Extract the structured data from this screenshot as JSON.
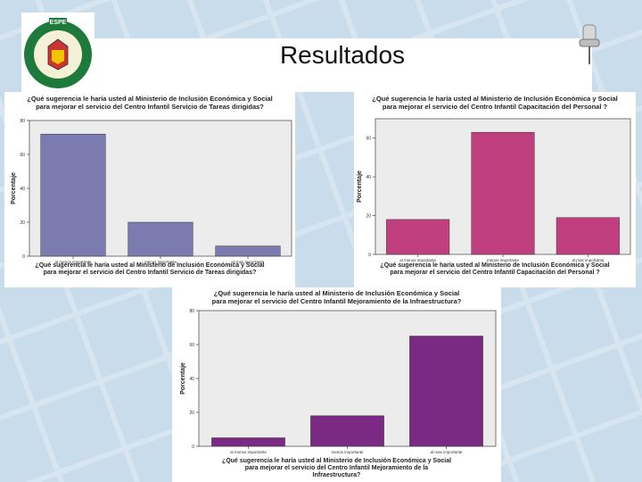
{
  "slide": {
    "title": "Resultados",
    "logo_text": "ESPE",
    "logo_ring_text": "UNIVERSIDAD DE LAS FUERZAS ARMADAS"
  },
  "chart_data": [
    {
      "type": "bar",
      "title": "¿Qué sugerencia le haría usted al Ministerio de Inclusión Económica y Social para mejorar el servicio del Centro Infantil Servicio de Tareas dirigidas?",
      "title_lines": [
        "¿Qué sugerencia le haría usted al Ministerio de Inclusión Económica y Social",
        "para mejorar el servicio del Centro Infantil Servicio de Tareas dirigidas?"
      ],
      "xlabel_lines": [
        "¿Qué sugerencia le haría usted al Ministerio de Inclusión Económica y Social",
        "para mejorar el servicio del Centro Infantil Servicio de Tareas dirigidas?"
      ],
      "ylabel": "Porcentaje",
      "categories": [
        "al menos importante",
        "menos importante",
        "al mas importante"
      ],
      "values": [
        72,
        20,
        6
      ],
      "yticks": [
        0,
        20,
        40,
        60,
        80
      ],
      "ylim": [
        0,
        80
      ],
      "color": "#7b7bb0"
    },
    {
      "type": "bar",
      "title": "¿Qué sugerencia le haría usted al Ministerio de Inclusión Económica y Social para mejorar el servicio del Centro Infantil Capacitación del Personal ?",
      "title_lines": [
        "¿Qué sugerencia le haría usted al Ministerio de Inclusión Económica y Social",
        "para mejorar el servicio del Centro Infantil Capacitación del Personal ?"
      ],
      "xlabel_lines": [
        "¿Qué sugerencia le haría usted al Ministerio de Inclusión Económica y Social",
        "para mejorar el servicio del Centro Infantil Capacitación del Personal ?"
      ],
      "ylabel": "Porcentaje",
      "categories": [
        "al menos importante",
        "menos importante",
        "al mas importante"
      ],
      "values": [
        18,
        63,
        19
      ],
      "yticks": [
        0,
        20,
        40,
        60
      ],
      "ylim": [
        0,
        70
      ],
      "color": "#c0407f"
    },
    {
      "type": "bar",
      "title": "¿Qué sugerencia le haría usted al Ministerio de Inclusión Económica y Social para mejorar el servicio del Centro Infantil Mejoramiento de la Infraestructura?",
      "title_lines": [
        "¿Qué sugerencia le haría usted al Ministerio de Inclusión Económica y Social",
        "para mejorar el servicio del Centro Infantil Mejoramiento de la Infraestructura?"
      ],
      "xlabel_lines": [
        "¿Qué sugerencia le haría usted al Ministerio de Inclusión Económica y Social",
        "para mejorar el servicio del Centro Infantil Mejoramiento de la",
        "Infraestructura?"
      ],
      "ylabel": "Porcentaje",
      "categories": [
        "al menos importante",
        "menos importante",
        "al mas importante"
      ],
      "values": [
        5,
        18,
        65
      ],
      "yticks": [
        0,
        20,
        40,
        60,
        80
      ],
      "ylim": [
        0,
        80
      ],
      "color": "#7a2a82"
    }
  ]
}
